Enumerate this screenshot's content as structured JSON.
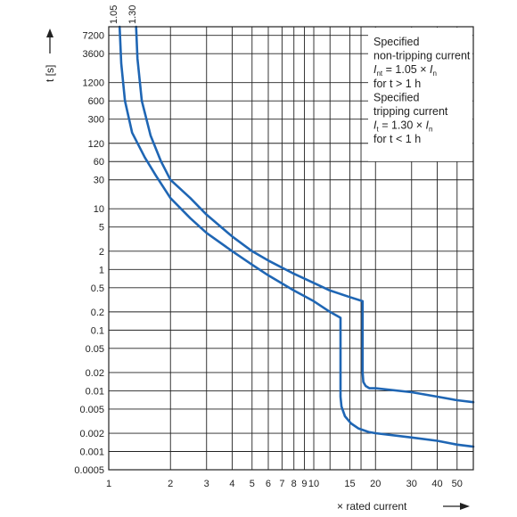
{
  "chart_data": {
    "type": "line",
    "title": "",
    "xlabel": "× rated current",
    "ylabel": "t [s]",
    "x_scale": "log",
    "y_scale": "log",
    "xlim": [
      1,
      60
    ],
    "ylim": [
      0.0005,
      10000
    ],
    "grid": true,
    "x_ticks": [
      1,
      2,
      3,
      4,
      5,
      6,
      7,
      8,
      9,
      10,
      20,
      30,
      40,
      50
    ],
    "x_tick_labels": [
      "1",
      "2",
      "3",
      "4",
      "5",
      "6",
      "7",
      "8",
      "9",
      "10",
      "15",
      "20",
      "30",
      "40",
      "50"
    ],
    "x_tick_label_values": [
      1,
      2,
      3,
      4,
      5,
      6,
      7,
      8,
      9,
      10,
      15,
      20,
      30,
      40,
      50
    ],
    "x_grid": [
      1,
      2,
      3,
      4,
      5,
      6,
      7,
      8,
      9,
      10,
      12,
      15,
      17,
      20,
      30,
      40,
      50
    ],
    "y_ticks": [
      0.0005,
      0.001,
      0.002,
      0.005,
      0.01,
      0.02,
      0.05,
      0.1,
      0.2,
      0.5,
      1,
      2,
      5,
      10,
      30,
      60,
      120,
      300,
      600,
      1200,
      3600,
      7200
    ],
    "y_tick_labels": [
      "0.0005",
      "0.001",
      "0.002",
      "0.005",
      "0.01",
      "0.02",
      "0.05",
      "0.1",
      "0.2",
      "0.5",
      "1",
      "2",
      "5",
      "10",
      "30",
      "60",
      "120",
      "300",
      "600",
      "1200",
      "3600",
      "7200"
    ],
    "top_labels": [
      {
        "text": "1.05",
        "x": 1.05
      },
      {
        "text": "1.30",
        "x": 1.3
      }
    ],
    "series": [
      {
        "x": [
          1.13,
          1.15,
          1.2,
          1.3,
          1.5,
          1.7,
          2,
          2.5,
          3,
          4,
          5,
          6,
          8,
          10,
          12,
          13.5,
          13.5,
          13.65,
          14.2,
          15.2,
          16.5,
          18.5,
          20,
          30,
          40,
          50,
          60
        ],
        "y": [
          10000,
          2500,
          600,
          180,
          70,
          35,
          15,
          7,
          4,
          2,
          1.2,
          0.8,
          0.45,
          0.3,
          0.2,
          0.16,
          0.008,
          0.0055,
          0.0038,
          0.0029,
          0.0024,
          0.0021,
          0.002,
          0.0017,
          0.0015,
          0.0013,
          0.0012
        ]
      },
      {
        "x": [
          1.36,
          1.38,
          1.45,
          1.6,
          1.8,
          2,
          2.5,
          3,
          4,
          5,
          6,
          8,
          10,
          12,
          15,
          17.3,
          17.3,
          17.45,
          17.9,
          18.7,
          20,
          30,
          40,
          50,
          60
        ],
        "y": [
          10000,
          3000,
          600,
          160,
          60,
          30,
          15,
          8,
          3.5,
          2,
          1.4,
          0.85,
          0.6,
          0.45,
          0.35,
          0.3,
          0.02,
          0.014,
          0.012,
          0.011,
          0.011,
          0.0095,
          0.008,
          0.007,
          0.0065
        ]
      }
    ],
    "annotation": {
      "lines": [
        [
          "Specified"
        ],
        [
          "non-tripping current"
        ],
        [
          "I",
          "nt",
          " = 1.05 × ",
          "I",
          "n"
        ],
        [
          "for t > 1 h"
        ],
        [
          "Specified"
        ],
        [
          "tripping current"
        ],
        [
          "I",
          "t",
          " = 1.30 × ",
          "I",
          "n"
        ],
        [
          "for t < 1 h"
        ]
      ]
    },
    "colors": {
      "curve": "#1f66b4",
      "grid": "#222222",
      "text": "#222222"
    }
  }
}
